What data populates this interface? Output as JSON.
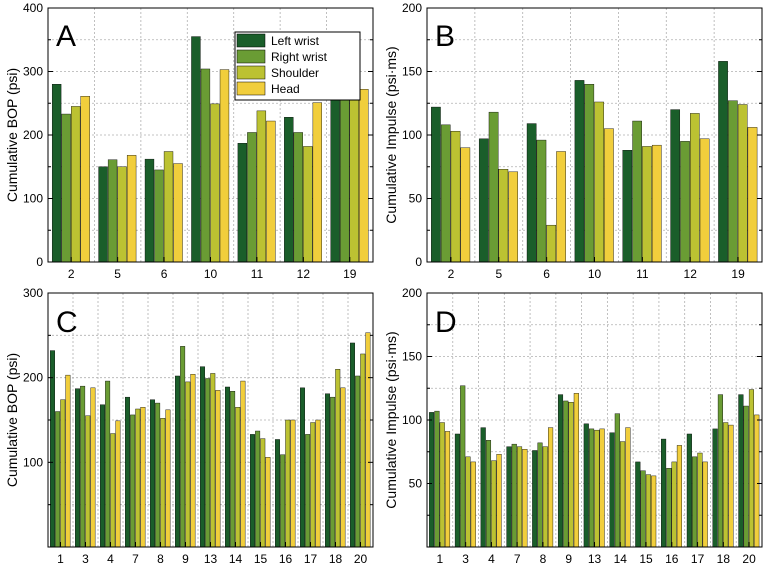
{
  "colors": {
    "left_wrist": "#1a5e2a",
    "right_wrist": "#6a9c34",
    "shoulder": "#bcc232",
    "head": "#f1ce3c"
  },
  "legend": [
    "Left wrist",
    "Right wrist",
    "Shoulder",
    "Head"
  ],
  "chart_data": [
    {
      "panel": "A",
      "type": "bar",
      "title": "",
      "xlabel": "",
      "ylabel": "Cumulative BOP (psi)",
      "ylim": [
        0,
        400
      ],
      "yticks": [
        0,
        100,
        200,
        300,
        400
      ],
      "categories": [
        "2",
        "5",
        "6",
        "10",
        "11",
        "12",
        "19"
      ],
      "series": [
        {
          "name": "Left wrist",
          "values": [
            280,
            150,
            162,
            355,
            187,
            228,
            302
          ]
        },
        {
          "name": "Right wrist",
          "values": [
            233,
            161,
            145,
            304,
            204,
            204,
            274
          ]
        },
        {
          "name": "Shoulder",
          "values": [
            245,
            150,
            174,
            249,
            238,
            182,
            274
          ]
        },
        {
          "name": "Head",
          "values": [
            261,
            168,
            155,
            303,
            222,
            251,
            272
          ]
        }
      ],
      "grid": true,
      "legend_position": "top-center"
    },
    {
      "panel": "B",
      "type": "bar",
      "title": "",
      "xlabel": "",
      "ylabel": "Cumulative Impulse (psi·ms)",
      "ylim": [
        0,
        200
      ],
      "yticks": [
        0,
        50,
        100,
        150,
        200
      ],
      "categories": [
        "2",
        "5",
        "6",
        "10",
        "11",
        "12",
        "19"
      ],
      "series": [
        {
          "name": "Left wrist",
          "values": [
            122,
            97,
            109,
            143,
            88,
            120,
            158
          ]
        },
        {
          "name": "Right wrist",
          "values": [
            108,
            118,
            96,
            140,
            111,
            95,
            127
          ]
        },
        {
          "name": "Shoulder",
          "values": [
            103,
            73,
            29,
            126,
            91,
            117,
            124
          ]
        },
        {
          "name": "Head",
          "values": [
            90,
            71,
            87,
            105,
            92,
            97,
            106
          ]
        }
      ],
      "grid": true
    },
    {
      "panel": "C",
      "type": "bar",
      "title": "",
      "xlabel": "",
      "ylabel": "Cumulative BOP (psi)",
      "ylim": [
        0,
        300
      ],
      "yticks": [
        100,
        200,
        300
      ],
      "categories": [
        "1",
        "3",
        "4",
        "7",
        "8",
        "9",
        "13",
        "14",
        "15",
        "16",
        "17",
        "18",
        "20"
      ],
      "series": [
        {
          "name": "Left wrist",
          "values": [
            232,
            187,
            168,
            177,
            174,
            202,
            213,
            189,
            133,
            127,
            188,
            181,
            241
          ]
        },
        {
          "name": "Right wrist",
          "values": [
            160,
            190,
            196,
            156,
            170,
            237,
            199,
            184,
            137,
            109,
            133,
            177,
            202
          ]
        },
        {
          "name": "Shoulder",
          "values": [
            174,
            155,
            134,
            163,
            152,
            195,
            205,
            165,
            128,
            150,
            147,
            210,
            228
          ]
        },
        {
          "name": "Head",
          "values": [
            203,
            188,
            149,
            165,
            162,
            204,
            185,
            196,
            106,
            150,
            150,
            188,
            253
          ]
        }
      ],
      "grid": true
    },
    {
      "panel": "D",
      "type": "bar",
      "title": "",
      "xlabel": "",
      "ylabel": "Cumulative Impulse (psi·ms)",
      "ylim": [
        0,
        200
      ],
      "yticks": [
        50,
        100,
        150,
        200
      ],
      "categories": [
        "1",
        "3",
        "4",
        "7",
        "8",
        "9",
        "13",
        "14",
        "15",
        "16",
        "17",
        "18",
        "20"
      ],
      "series": [
        {
          "name": "Left wrist",
          "values": [
            106,
            89,
            94,
            79,
            76,
            120,
            97,
            90,
            67,
            85,
            89,
            93,
            120
          ]
        },
        {
          "name": "Right wrist",
          "values": [
            107,
            127,
            84,
            81,
            82,
            115,
            93,
            105,
            60,
            62,
            71,
            120,
            111
          ]
        },
        {
          "name": "Shoulder",
          "values": [
            98,
            71,
            68,
            79,
            79,
            114,
            92,
            83,
            57,
            67,
            74,
            98,
            124
          ]
        },
        {
          "name": "Head",
          "values": [
            91,
            67,
            73,
            77,
            94,
            121,
            93,
            94,
            56,
            80,
            67,
            96,
            104
          ]
        }
      ],
      "grid": true
    }
  ]
}
